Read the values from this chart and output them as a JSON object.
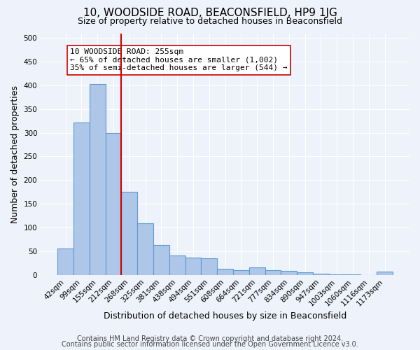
{
  "title": "10, WOODSIDE ROAD, BEACONSFIELD, HP9 1JG",
  "subtitle": "Size of property relative to detached houses in Beaconsfield",
  "xlabel": "Distribution of detached houses by size in Beaconsfield",
  "ylabel": "Number of detached properties",
  "footer_line1": "Contains HM Land Registry data © Crown copyright and database right 2024.",
  "footer_line2": "Contains public sector information licensed under the Open Government Licence v3.0.",
  "bar_labels": [
    "42sqm",
    "99sqm",
    "155sqm",
    "212sqm",
    "268sqm",
    "325sqm",
    "381sqm",
    "438sqm",
    "494sqm",
    "551sqm",
    "608sqm",
    "664sqm",
    "721sqm",
    "777sqm",
    "834sqm",
    "890sqm",
    "947sqm",
    "1003sqm",
    "1060sqm",
    "1116sqm",
    "1173sqm"
  ],
  "bar_values": [
    55,
    322,
    403,
    300,
    175,
    108,
    63,
    40,
    37,
    35,
    12,
    10,
    15,
    10,
    8,
    5,
    3,
    1,
    1,
    0,
    6
  ],
  "bar_color": "#aec6e8",
  "bar_edge_color": "#5b9bd5",
  "ylim": [
    0,
    510
  ],
  "yticks": [
    0,
    50,
    100,
    150,
    200,
    250,
    300,
    350,
    400,
    450,
    500
  ],
  "vline_color": "#cc0000",
  "annotation_text": "10 WOODSIDE ROAD: 255sqm\n← 65% of detached houses are smaller (1,002)\n35% of semi-detached houses are larger (544) →",
  "annotation_box_color": "#ffffff",
  "annotation_box_edge": "#cc0000",
  "bg_color": "#eef2fa",
  "grid_color": "#ffffff",
  "title_fontsize": 11,
  "subtitle_fontsize": 9,
  "axis_label_fontsize": 9,
  "tick_fontsize": 7.5,
  "annotation_fontsize": 8,
  "footer_fontsize": 7
}
